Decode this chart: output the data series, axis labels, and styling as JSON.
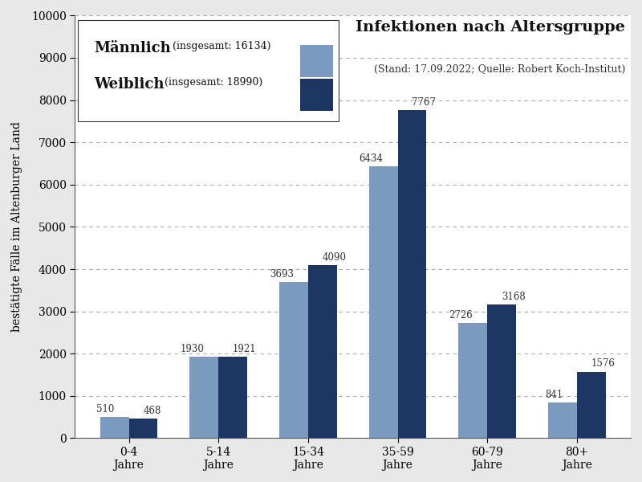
{
  "categories": [
    "0-4\nJahre",
    "5-14\nJahre",
    "15-34\nJahre",
    "35-59\nJahre",
    "60-79\nJahre",
    "80+\nJahre"
  ],
  "maennlich": [
    510,
    1930,
    3693,
    6434,
    2726,
    841
  ],
  "weiblich": [
    468,
    1921,
    4090,
    7767,
    3168,
    1576
  ],
  "color_maennlich": "#7a9bbf",
  "color_weiblich": "#1e3664",
  "title": "Infektionen nach Altersgruppe",
  "subtitle": "(Stand: 17.09.2022; Quelle: Robert Koch-Institut)",
  "ylabel": "bestätigte Fälle im Altenburger Land",
  "ylim": [
    0,
    10000
  ],
  "yticks": [
    0,
    1000,
    2000,
    3000,
    4000,
    5000,
    6000,
    7000,
    8000,
    9000,
    10000
  ],
  "legend_maennlich": "Männlich",
  "legend_maennlich_small": " (insgesamt: 16134)",
  "legend_weiblich": "Weiblich",
  "legend_weiblich_small": " (insgesamt: 18990)",
  "bar_width": 0.32,
  "background_color": "#e8e8e8",
  "plot_bg_color": "#ffffff",
  "grid_color": "#aaaaaa",
  "label_fontsize": 8.5,
  "title_fontsize": 14,
  "subtitle_fontsize": 9
}
